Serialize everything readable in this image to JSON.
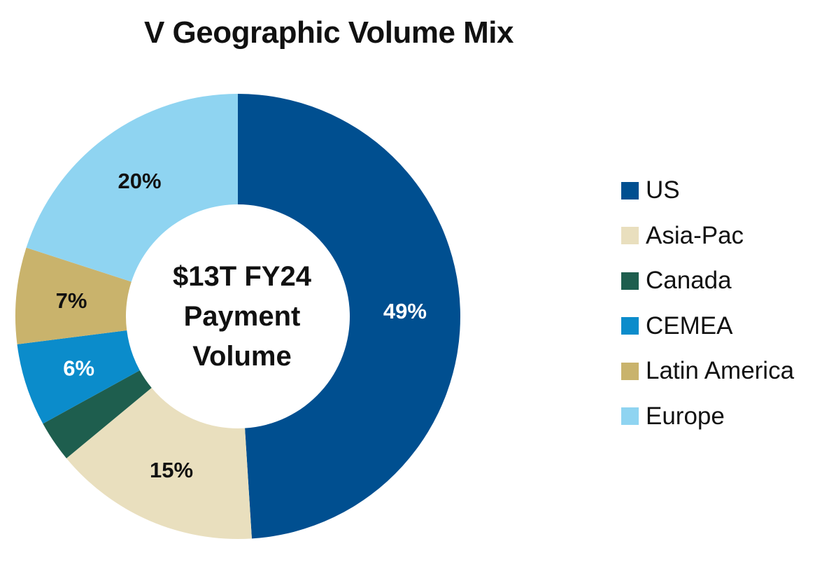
{
  "chart_data": {
    "type": "pie",
    "title": "V Geographic Volume Mix",
    "center_label": [
      "$13T FY24",
      "Payment",
      "Volume"
    ],
    "legend_position": "right",
    "slices": [
      {
        "name": "US",
        "value": 49,
        "label": "49%",
        "color": "#004F90",
        "label_color": "#ffffff"
      },
      {
        "name": "Asia-Pac",
        "value": 15,
        "label": "15%",
        "color": "#E9DFBE",
        "label_color": "#111111"
      },
      {
        "name": "Canada",
        "value": 3,
        "label": "",
        "color": "#1E5E4E",
        "label_color": "#111111"
      },
      {
        "name": "CEMEA",
        "value": 6,
        "label": "6%",
        "color": "#0B8CCB",
        "label_color": "#ffffff"
      },
      {
        "name": "Latin America",
        "value": 7,
        "label": "7%",
        "color": "#C9B36C",
        "label_color": "#111111"
      },
      {
        "name": "Europe",
        "value": 20,
        "label": "20%",
        "color": "#8FD4F1",
        "label_color": "#111111"
      }
    ]
  }
}
